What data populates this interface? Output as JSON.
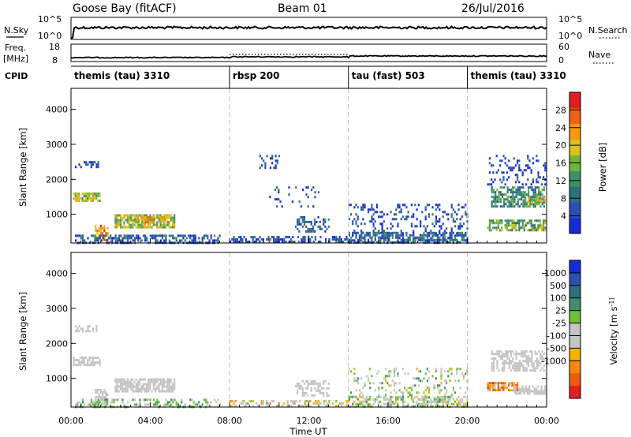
{
  "header": {
    "station": "Goose Bay (fitACF)",
    "beam": "Beam 01",
    "date": "26/Jul/2016"
  },
  "top_panels": {
    "nsky_label": "N.Sky",
    "nsky_ticks": [
      "10^5",
      "10^0"
    ],
    "nsearch_label": "N.Search",
    "nsearch_ticks": [
      "10^5",
      "10^0"
    ],
    "freq_label": "Freq.",
    "freq_unit": "[MHz]",
    "freq_ticks": [
      "18",
      "8"
    ],
    "nave_label": "Nave",
    "nave_ticks": [
      "60",
      "0"
    ],
    "cpid_label": "CPID",
    "cpid_segments": [
      {
        "label": "themis (tau) 3310",
        "start_h": 0,
        "end_h": 8
      },
      {
        "label": "rbsp 200",
        "start_h": 8,
        "end_h": 14
      },
      {
        "label": "tau (fast) 503",
        "start_h": 14,
        "end_h": 20
      },
      {
        "label": "themis (tau) 3310",
        "start_h": 20,
        "end_h": 24
      }
    ]
  },
  "colors": {
    "power_scale": [
      "#1a2bd6",
      "#2c4fb0",
      "#2d6f7a",
      "#3f8f6a",
      "#6fb43c",
      "#d9c21a",
      "#f59a10",
      "#f0601a",
      "#e02020"
    ],
    "velocity_scale": [
      "#1a2bd6",
      "#2c4fb0",
      "#2d6f7a",
      "#3f8f6a",
      "#6fc035",
      "#c4c4c4",
      "#c4c4c4",
      "#f5b200",
      "#f08a10",
      "#f05a10",
      "#e02020"
    ],
    "gray_flag": "#c4c4c4"
  },
  "chart_data": [
    {
      "type": "heatmap",
      "title": "",
      "xlabel": "",
      "ylabel": "Slant Range [km]",
      "x_range_hours": [
        0,
        24
      ],
      "x_ticks": [
        "00:00",
        "04:00",
        "08:00",
        "12:00",
        "16:00",
        "20:00",
        "00:00"
      ],
      "ylim": [
        180,
        4600
      ],
      "y_ticks": [
        1000,
        2000,
        3000,
        4000
      ],
      "colorbar": {
        "label": "Power [dB]",
        "range": [
          0,
          32
        ],
        "ticks": [
          4,
          8,
          12,
          16,
          20,
          24,
          28
        ]
      },
      "regions": [
        {
          "t0": 0.2,
          "t1": 1.4,
          "r0": 2380,
          "r1": 2520,
          "level": 0.15,
          "density": 0.55
        },
        {
          "t0": 0.1,
          "t1": 1.5,
          "r0": 1380,
          "r1": 1620,
          "level": 0.55,
          "density": 0.75
        },
        {
          "t0": 1.2,
          "t1": 1.9,
          "r0": 280,
          "r1": 700,
          "level": 0.75,
          "density": 0.6
        },
        {
          "t0": 2.2,
          "t1": 5.2,
          "r0": 650,
          "r1": 1000,
          "level": 0.55,
          "density": 0.8
        },
        {
          "t0": 3.2,
          "t1": 4.9,
          "r0": 750,
          "r1": 950,
          "level": 0.7,
          "density": 0.6
        },
        {
          "t0": 0.2,
          "t1": 7.5,
          "r0": 200,
          "r1": 420,
          "level": 0.2,
          "density": 0.6
        },
        {
          "t0": 8.0,
          "t1": 14.0,
          "r0": 200,
          "r1": 380,
          "level": 0.15,
          "density": 0.5
        },
        {
          "t0": 9.5,
          "t1": 10.5,
          "r0": 2300,
          "r1": 2700,
          "level": 0.1,
          "density": 0.25
        },
        {
          "t0": 10.0,
          "t1": 12.5,
          "r0": 1200,
          "r1": 1800,
          "level": 0.1,
          "density": 0.12
        },
        {
          "t0": 11.3,
          "t1": 13.0,
          "r0": 500,
          "r1": 950,
          "level": 0.2,
          "density": 0.45
        },
        {
          "t0": 14.0,
          "t1": 20.0,
          "r0": 200,
          "r1": 1300,
          "level": 0.15,
          "density": 0.22
        },
        {
          "t0": 14.0,
          "t1": 20.0,
          "r0": 200,
          "r1": 500,
          "level": 0.25,
          "density": 0.55
        },
        {
          "t0": 21.0,
          "t1": 23.9,
          "r0": 1850,
          "r1": 2700,
          "level": 0.1,
          "density": 0.2
        },
        {
          "t0": 21.2,
          "t1": 23.9,
          "r0": 1200,
          "r1": 1800,
          "level": 0.35,
          "density": 0.6
        },
        {
          "t0": 21.0,
          "t1": 23.9,
          "r0": 550,
          "r1": 850,
          "level": 0.45,
          "density": 0.75
        },
        {
          "t0": 22.8,
          "t1": 23.9,
          "r0": 1300,
          "r1": 1500,
          "level": 0.55,
          "density": 0.6
        }
      ]
    },
    {
      "type": "heatmap",
      "title": "",
      "xlabel": "Time UT",
      "ylabel": "Slant Range [km]",
      "x_range_hours": [
        0,
        24
      ],
      "x_ticks": [
        "00:00",
        "04:00",
        "08:00",
        "12:00",
        "16:00",
        "20:00",
        "00:00"
      ],
      "ylim": [
        180,
        4600
      ],
      "y_ticks": [
        1000,
        2000,
        3000,
        4000
      ],
      "colorbar": {
        "label": "Velocity [m s^-1]",
        "ticks": [
          "1000",
          "500",
          "100",
          "25",
          "-25",
          "-100",
          "-500",
          "-1000"
        ]
      },
      "regions": [
        {
          "t0": 0.2,
          "t1": 1.4,
          "r0": 2380,
          "r1": 2520,
          "level": -1,
          "density": 0.55
        },
        {
          "t0": 0.1,
          "t1": 1.5,
          "r0": 1380,
          "r1": 1620,
          "level": -1,
          "density": 0.75
        },
        {
          "t0": 1.2,
          "t1": 1.9,
          "r0": 280,
          "r1": 700,
          "level": -1,
          "density": 0.6
        },
        {
          "t0": 2.2,
          "t1": 5.2,
          "r0": 650,
          "r1": 1000,
          "level": -1,
          "density": 0.8
        },
        {
          "t0": 0.2,
          "t1": 7.5,
          "r0": 200,
          "r1": 420,
          "level": 0.45,
          "density": 0.35
        },
        {
          "t0": 8.0,
          "t1": 14.0,
          "r0": 200,
          "r1": 380,
          "level": 0.6,
          "density": 0.4
        },
        {
          "t0": 11.3,
          "t1": 13.0,
          "r0": 500,
          "r1": 950,
          "level": -1,
          "density": 0.45
        },
        {
          "t0": 14.0,
          "t1": 20.0,
          "r0": 200,
          "r1": 1300,
          "level": 0.5,
          "density": 0.2
        },
        {
          "t0": 14.0,
          "t1": 20.0,
          "r0": 200,
          "r1": 500,
          "level": 0.5,
          "density": 0.5
        },
        {
          "t0": 21.2,
          "t1": 23.9,
          "r0": 1200,
          "r1": 1800,
          "level": -1,
          "density": 0.6
        },
        {
          "t0": 21.0,
          "t1": 22.5,
          "r0": 650,
          "r1": 900,
          "level": 0.75,
          "density": 0.75
        },
        {
          "t0": 22.3,
          "t1": 23.9,
          "r0": 550,
          "r1": 800,
          "level": -1,
          "density": 0.7
        }
      ]
    }
  ]
}
